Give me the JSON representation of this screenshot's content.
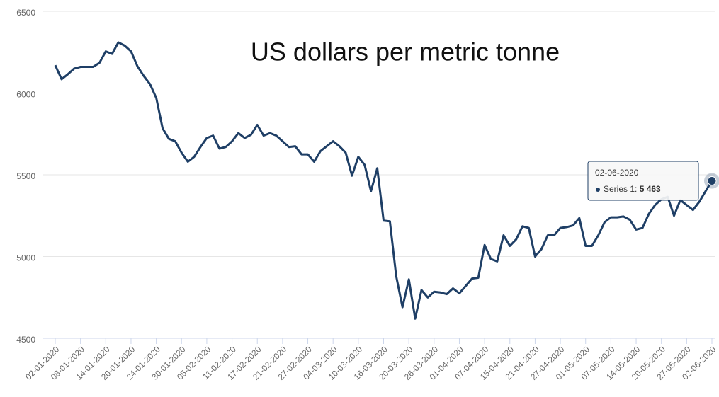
{
  "chart_data": {
    "type": "line",
    "title": "US dollars per metric tonne",
    "categories": [
      "02-01-2020",
      null,
      null,
      null,
      "08-01-2020",
      null,
      null,
      null,
      "14-01-2020",
      null,
      null,
      null,
      "20-01-2020",
      null,
      null,
      null,
      "24-01-2020",
      null,
      null,
      null,
      "30-01-2020",
      null,
      null,
      null,
      "05-02-2020",
      null,
      null,
      null,
      "11-02-2020",
      null,
      null,
      null,
      "17-02-2020",
      null,
      null,
      null,
      "21-02-2020",
      null,
      null,
      null,
      "27-02-2020",
      null,
      null,
      null,
      "04-03-2020",
      null,
      null,
      null,
      "10-03-2020",
      null,
      null,
      null,
      "16-03-2020",
      null,
      null,
      null,
      "20-03-2020",
      null,
      null,
      null,
      "26-03-2020",
      null,
      null,
      null,
      "01-04-2020",
      null,
      null,
      null,
      "07-04-2020",
      null,
      null,
      null,
      "15-04-2020",
      null,
      null,
      null,
      "21-04-2020",
      null,
      null,
      null,
      "27-04-2020",
      null,
      null,
      null,
      "01-05-2020",
      null,
      null,
      null,
      "07-05-2020",
      null,
      null,
      null,
      "14-05-2020",
      null,
      null,
      null,
      "20-05-2020",
      null,
      null,
      null,
      "27-05-2020",
      null,
      null,
      null,
      "02-06-2020"
    ],
    "series": [
      {
        "name": "Series 1",
        "color": "#1f3f66",
        "values": [
          6170,
          6085,
          6115,
          6150,
          6160,
          6160,
          6160,
          6185,
          6255,
          6240,
          6310,
          6290,
          6255,
          6165,
          6105,
          6055,
          5970,
          5785,
          5720,
          5705,
          5635,
          5580,
          5610,
          5670,
          5725,
          5740,
          5660,
          5670,
          5705,
          5755,
          5725,
          5745,
          5805,
          5740,
          5755,
          5740,
          5705,
          5670,
          5675,
          5625,
          5625,
          5580,
          5645,
          5675,
          5705,
          5675,
          5635,
          5495,
          5610,
          5560,
          5400,
          5540,
          5220,
          5215,
          4880,
          4690,
          4860,
          4620,
          4795,
          4750,
          4785,
          4780,
          4770,
          4805,
          4775,
          4820,
          4865,
          4870,
          5070,
          4985,
          4970,
          5130,
          5065,
          5105,
          5185,
          5175,
          5000,
          5045,
          5130,
          5130,
          5175,
          5180,
          5190,
          5235,
          5065,
          5065,
          5130,
          5210,
          5240,
          5240,
          5245,
          5225,
          5165,
          5175,
          5260,
          5315,
          5350,
          5365,
          5250,
          5345,
          5315,
          5285,
          5335,
          5400,
          5463
        ],
        "value_labels": [
          null,
          null,
          null,
          null,
          null,
          null,
          null,
          null,
          null,
          null,
          null,
          null,
          null,
          null,
          null,
          null,
          null,
          null,
          null,
          null,
          null,
          null,
          null,
          null,
          null,
          null,
          null,
          null,
          null,
          null,
          null,
          null,
          null,
          null,
          null,
          null,
          null,
          null,
          null,
          null,
          null,
          null,
          null,
          null,
          null,
          null,
          null,
          null,
          null,
          null,
          null,
          null,
          null,
          null,
          null,
          null,
          null,
          null,
          null,
          null,
          null,
          null,
          null,
          null,
          null,
          null,
          null,
          null,
          null,
          null,
          null,
          null,
          null,
          null,
          null,
          null,
          null,
          null,
          null,
          null,
          null,
          null,
          null,
          null,
          null,
          null,
          null,
          null,
          null,
          null,
          null,
          null,
          null,
          null,
          null,
          null,
          null,
          null,
          null,
          null,
          null,
          null,
          null,
          null,
          "5 463"
        ]
      }
    ],
    "ylim": [
      4500,
      6500
    ],
    "yticks": [
      4500,
      5000,
      5500,
      6000,
      6500
    ],
    "grid": true
  }
}
